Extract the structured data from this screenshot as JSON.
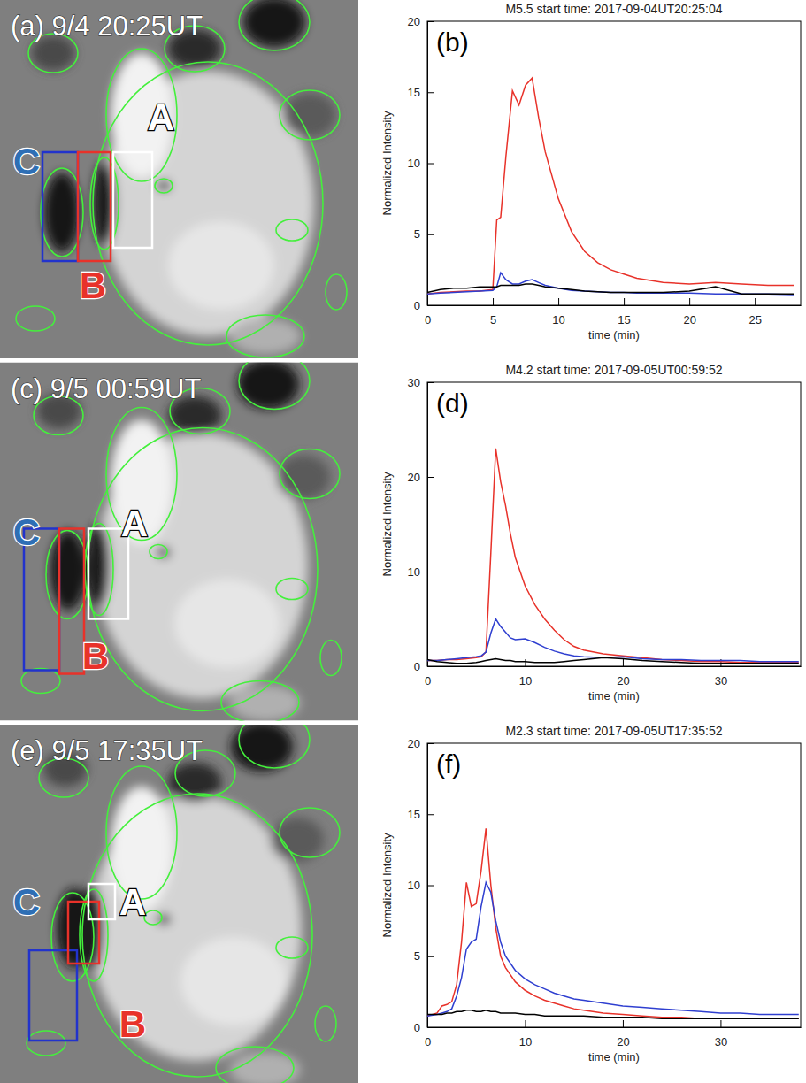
{
  "image_panels": [
    {
      "label": "(a) 9/4 20:25UT",
      "regions": [
        "A",
        "B",
        "C"
      ]
    },
    {
      "label": "(c) 9/5 00:59UT",
      "regions": [
        "A",
        "B",
        "C"
      ]
    },
    {
      "label": "(e) 9/5 17:35UT",
      "regions": [
        "A",
        "B",
        "C"
      ]
    }
  ],
  "chart_data": [
    {
      "type": "line",
      "panel": "(b)",
      "title": "M5.5 start time: 2017-09-04UT20:25:04",
      "x_label": "time (min)",
      "y_label": "Normalized Intensity",
      "x": [
        0,
        1,
        2,
        3,
        4,
        5,
        5.3,
        5.6,
        6,
        6.5,
        7,
        7.5,
        8,
        8.5,
        9,
        10,
        11,
        12,
        13,
        14,
        15,
        16,
        18,
        20,
        22,
        24,
        26,
        28
      ],
      "xlim": [
        0,
        28.5
      ],
      "xticks": [
        0,
        5,
        10,
        15,
        20,
        25
      ],
      "ylim": [
        0,
        20
      ],
      "yticks": [
        0,
        5,
        10,
        15,
        20
      ],
      "series": [
        {
          "color": "#e8322a",
          "values": [
            0.8,
            0.9,
            0.95,
            1.0,
            1.0,
            1.1,
            6.0,
            6.2,
            10.5,
            15.1,
            14.1,
            15.5,
            16.0,
            13.2,
            10.8,
            7.5,
            5.2,
            3.8,
            3.0,
            2.5,
            2.2,
            1.9,
            1.6,
            1.5,
            1.6,
            1.5,
            1.4,
            1.4
          ]
        },
        {
          "color": "#2f3fd0",
          "values": [
            0.8,
            0.85,
            0.9,
            0.95,
            1.0,
            1.05,
            1.3,
            2.3,
            1.8,
            1.5,
            1.5,
            1.7,
            1.8,
            1.6,
            1.4,
            1.2,
            1.05,
            1.0,
            0.95,
            0.9,
            0.9,
            0.85,
            0.85,
            0.85,
            0.8,
            0.8,
            0.8,
            0.75
          ]
        },
        {
          "color": "#000000",
          "values": [
            0.9,
            1.1,
            1.2,
            1.2,
            1.3,
            1.3,
            1.3,
            1.4,
            1.4,
            1.4,
            1.4,
            1.5,
            1.5,
            1.4,
            1.3,
            1.2,
            1.1,
            1.0,
            0.95,
            0.9,
            0.9,
            0.9,
            0.9,
            1.0,
            1.3,
            0.8,
            0.8,
            0.8
          ]
        }
      ]
    },
    {
      "type": "line",
      "panel": "(d)",
      "title": "M4.2 start time: 2017-09-05UT00:59:52",
      "x_label": "time (min)",
      "y_label": "Normalized Intensity",
      "x": [
        0,
        1,
        2,
        3,
        4,
        5,
        5.5,
        6,
        6.5,
        7,
        7.5,
        8,
        8.5,
        9,
        10,
        11,
        12,
        13,
        14,
        15,
        16,
        18,
        20,
        22,
        24,
        26,
        28,
        30,
        32,
        34,
        36,
        38
      ],
      "xlim": [
        0,
        38.2
      ],
      "xticks": [
        0,
        10,
        20,
        30
      ],
      "ylim": [
        0,
        30
      ],
      "yticks": [
        0,
        10,
        20,
        30
      ],
      "series": [
        {
          "color": "#e8322a",
          "values": [
            0.6,
            0.6,
            0.7,
            0.7,
            0.8,
            0.9,
            1.0,
            1.5,
            12,
            23,
            19.5,
            17,
            14,
            11.5,
            8.5,
            6.5,
            5,
            3.8,
            2.8,
            2.1,
            1.7,
            1.3,
            1.1,
            0.9,
            0.7,
            0.6,
            0.5,
            0.5,
            0.4,
            0.4,
            0.4,
            0.4
          ]
        },
        {
          "color": "#2f3fd0",
          "values": [
            0.6,
            0.6,
            0.7,
            0.8,
            0.9,
            1.0,
            1.1,
            1.5,
            3.5,
            5.0,
            4.2,
            3.6,
            3.0,
            2.8,
            2.9,
            2.5,
            2.0,
            1.6,
            1.3,
            1.1,
            1.0,
            0.9,
            1.0,
            0.8,
            0.7,
            0.7,
            0.6,
            0.6,
            0.6,
            0.5,
            0.5,
            0.5
          ]
        },
        {
          "color": "#000000",
          "values": [
            0.7,
            0.5,
            0.4,
            0.3,
            0.3,
            0.4,
            0.5,
            0.6,
            0.7,
            0.8,
            0.7,
            0.6,
            0.6,
            0.5,
            0.5,
            0.4,
            0.4,
            0.4,
            0.5,
            0.6,
            0.7,
            0.9,
            0.8,
            0.6,
            0.5,
            0.4,
            0.3,
            0.3,
            0.3,
            0.3,
            0.3,
            0.3
          ]
        }
      ]
    },
    {
      "type": "line",
      "panel": "(f)",
      "title": "M2.3 start time: 2017-09-05UT17:35:52",
      "x_label": "time (min)",
      "y_label": "Normalized Intensity",
      "x": [
        0,
        1,
        1.5,
        2,
        2.5,
        3,
        3.5,
        4,
        4.5,
        5,
        5.5,
        6,
        6.5,
        7,
        7.5,
        8,
        9,
        10,
        11,
        12,
        13,
        14,
        15,
        16,
        18,
        20,
        22,
        24,
        26,
        28,
        30,
        32,
        34,
        36,
        38
      ],
      "xlim": [
        0,
        38.2
      ],
      "xticks": [
        0,
        10,
        20,
        30
      ],
      "ylim": [
        0,
        20
      ],
      "yticks": [
        0,
        5,
        10,
        15,
        20
      ],
      "series": [
        {
          "color": "#e8322a",
          "values": [
            0.8,
            1.0,
            1.5,
            1.6,
            1.8,
            3,
            6,
            10.2,
            8.5,
            8.7,
            11,
            14,
            10,
            7,
            5,
            4.2,
            3.2,
            2.6,
            2.2,
            1.9,
            1.7,
            1.5,
            1.3,
            1.2,
            1.0,
            0.9,
            0.8,
            0.7,
            0.7,
            0.6,
            0.6,
            0.6,
            0.6,
            0.6,
            0.6
          ]
        },
        {
          "color": "#2f3fd0",
          "values": [
            0.8,
            0.9,
            1.0,
            1.1,
            1.3,
            2.2,
            3.5,
            5.5,
            6.0,
            6.2,
            8.5,
            10.2,
            9.5,
            7.5,
            6,
            5,
            4,
            3.4,
            3,
            2.7,
            2.4,
            2.2,
            2.0,
            1.9,
            1.7,
            1.5,
            1.4,
            1.3,
            1.2,
            1.1,
            1.0,
            1.0,
            0.9,
            0.9,
            0.9
          ]
        },
        {
          "color": "#000000",
          "values": [
            0.9,
            0.9,
            0.9,
            1.0,
            1.0,
            1.1,
            1.1,
            1.2,
            1.2,
            1.1,
            1.1,
            1.2,
            1.1,
            1.1,
            1.0,
            1.0,
            1.0,
            0.9,
            0.9,
            0.8,
            0.8,
            0.8,
            0.8,
            0.8,
            0.7,
            0.7,
            0.7,
            0.6,
            0.6,
            0.6,
            0.6,
            0.6,
            0.6,
            0.6,
            0.6
          ]
        }
      ]
    }
  ]
}
